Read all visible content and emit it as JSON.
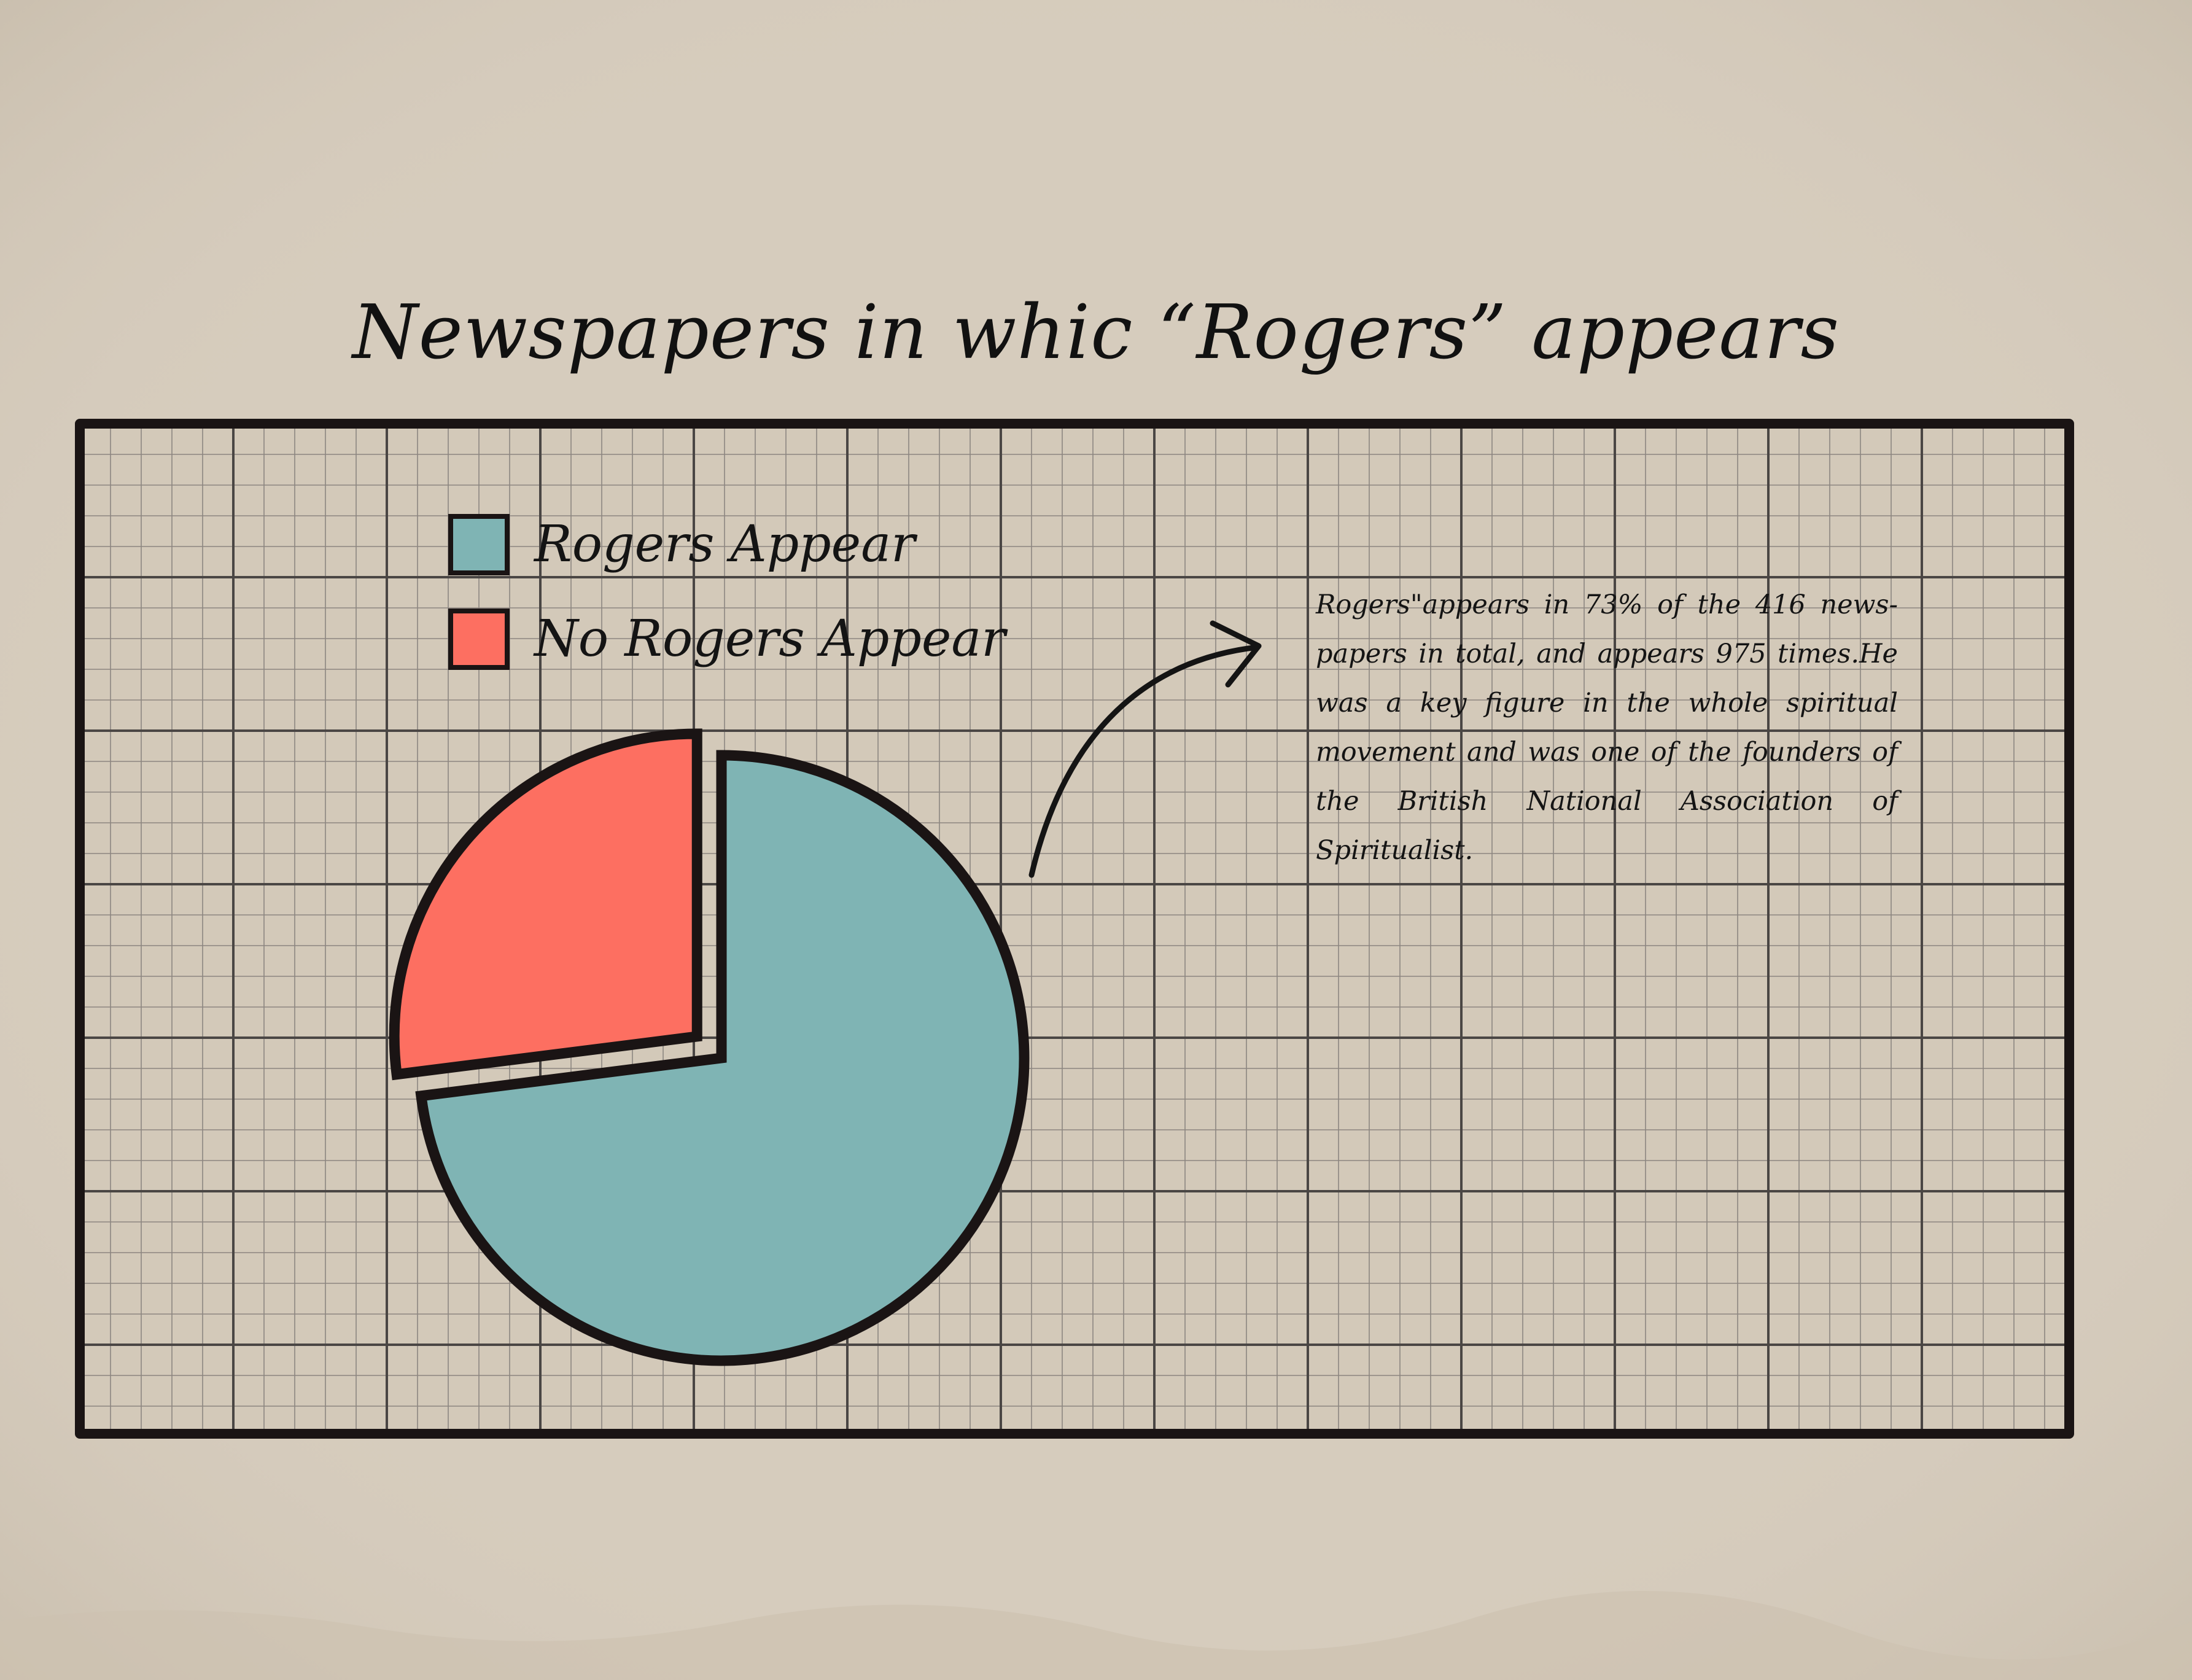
{
  "chart_data": {
    "type": "pie",
    "title": "Newspapers in whic “Rogers” appears",
    "categories": [
      "Rogers Appear",
      "No Rogers Appear"
    ],
    "values": [
      73,
      27
    ],
    "colors": [
      "#7fb4b4",
      "#fd6f61"
    ],
    "exploded": [
      false,
      true
    ],
    "legend": {
      "position": "top-left",
      "entries": [
        {
          "label": "Rogers Appear",
          "color": "#7fb4b4"
        },
        {
          "label": "No Rogers Appear",
          "color": "#fd6f61"
        }
      ]
    },
    "grid": true,
    "annotation": "Rogers\"appears in 73% of the 416 news-papers in total, and appears 975 times.He was a key figure in the whole spiritual movement and was one of the founders of the British National Association of Spiritualist."
  },
  "theme": {
    "paper_color": "#d6ccbd",
    "ink_color": "#1a1414",
    "grid_major_color": "#4a4644",
    "grid_minor_color": "#8c8680"
  }
}
